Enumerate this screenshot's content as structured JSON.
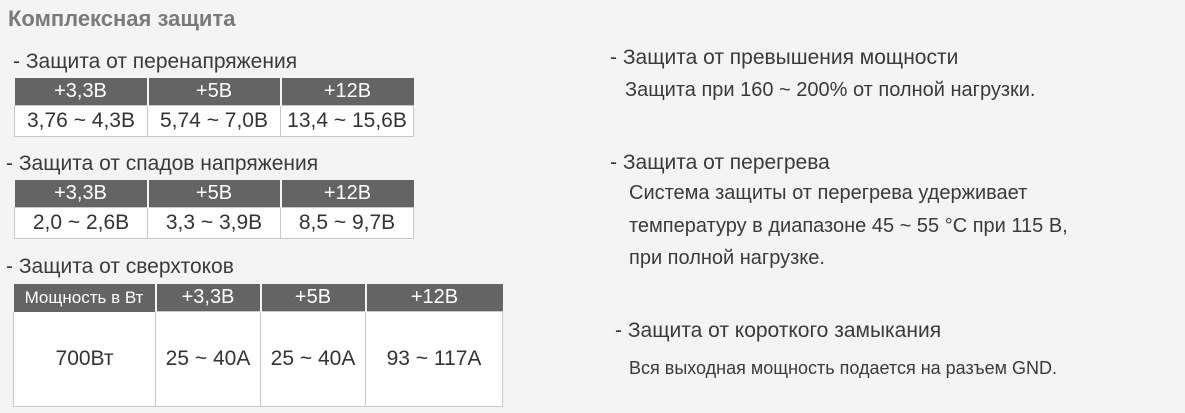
{
  "title": "Комплексная защита",
  "overvoltage": {
    "heading": "- Защита от перенапряжения",
    "headers": [
      "+3,3В",
      "+5В",
      "+12В"
    ],
    "values": [
      "3,76 ~ 4,3В",
      "5,74 ~ 7,0В",
      "13,4 ~ 15,6В"
    ]
  },
  "undervoltage": {
    "heading": "- Защита от спадов напряжения",
    "headers": [
      "+3,3В",
      "+5В",
      "+12В"
    ],
    "values": [
      "2,0 ~ 2,6В",
      "3,3 ~ 3,9В",
      "8,5 ~ 9,7В"
    ]
  },
  "overcurrent": {
    "heading": "- Защита от сверхтоков",
    "headers": [
      "Мощность в Вт",
      "+3,3В",
      "+5В",
      "+12В"
    ],
    "values": [
      "700Вт",
      "25 ~ 40А",
      "25 ~ 40А",
      "93 ~ 117А"
    ]
  },
  "overpower": {
    "heading": "- Защита от превышения мощности",
    "text": "Защита при 160 ~ 200% от полной нагрузки."
  },
  "overheat": {
    "heading": "- Защита от перегрева",
    "lines": [
      "Система защиты от перегрева удерживает",
      "температуру в диапазоне 45 ~ 55 °C при 115 В,",
      "при полной нагрузке."
    ]
  },
  "short_circuit": {
    "heading": "- Защита от короткого замыкания",
    "text": "Вся выходная мощность подается на разъем GND."
  }
}
